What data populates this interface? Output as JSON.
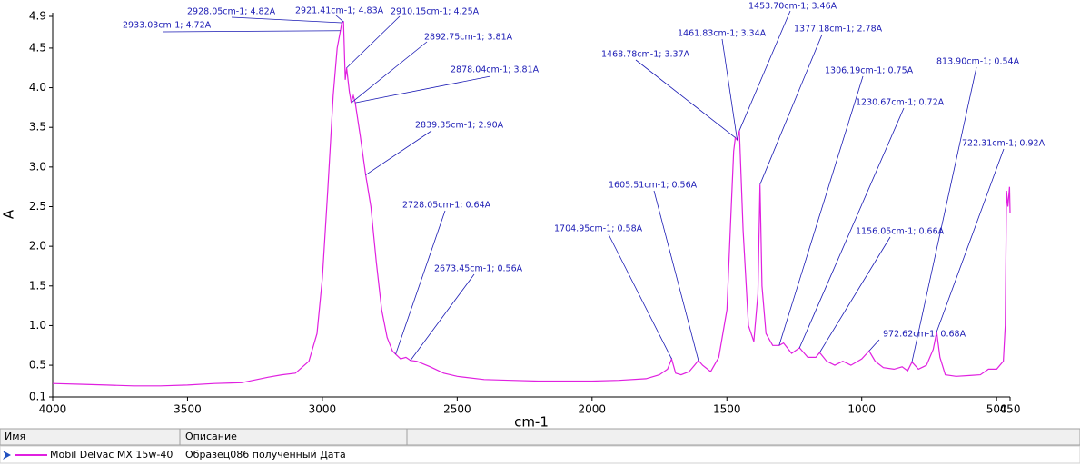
{
  "chart_data": {
    "type": "line",
    "x_label": "cm-1",
    "y_label": "A",
    "xlim": [
      4000,
      450
    ],
    "xticks": [
      4000,
      3500,
      3000,
      2500,
      2000,
      1500,
      1000,
      500,
      450
    ],
    "ylim": [
      0.1,
      4.9
    ],
    "yticks": [
      0.1,
      0.5,
      {
        "value": 1,
        "label": "1.0"
      },
      1.5,
      {
        "value": 2,
        "label": "2.0"
      },
      2.5,
      {
        "value": 3,
        "label": "3.0"
      },
      3.5,
      {
        "value": 4,
        "label": "4.0"
      },
      4.5,
      4.9
    ],
    "x": [
      4000,
      3900,
      3800,
      3700,
      3600,
      3500,
      3400,
      3300,
      3200,
      3150,
      3100,
      3050,
      3020,
      3000,
      2980,
      2960,
      2945,
      2933.03,
      2928.05,
      2921.41,
      2915,
      2910.15,
      2900,
      2892.75,
      2885,
      2878.04,
      2860,
      2839.35,
      2820,
      2800,
      2780,
      2760,
      2740,
      2728.05,
      2710,
      2690,
      2673.45,
      2650,
      2600,
      2550,
      2500,
      2400,
      2300,
      2200,
      2100,
      2000,
      1900,
      1800,
      1750,
      1720,
      1704.95,
      1690,
      1670,
      1640,
      1620,
      1605.51,
      1590,
      1560,
      1530,
      1500,
      1485,
      1475,
      1468.78,
      1461.83,
      1453.7,
      1440,
      1420,
      1400,
      1385,
      1377.18,
      1370,
      1355,
      1330,
      1306.19,
      1290,
      1260,
      1230.67,
      1200,
      1170,
      1156.05,
      1130,
      1100,
      1070,
      1040,
      1000,
      972.62,
      950,
      920,
      880,
      850,
      830,
      813.9,
      790,
      760,
      735,
      722.31,
      710,
      690,
      650,
      600,
      560,
      530,
      500,
      475,
      468,
      463,
      458,
      452,
      450
    ],
    "series": [
      {
        "name": "Mobil Delvac MX 15w-40",
        "color": "#e020e0",
        "values": [
          0.27,
          0.26,
          0.25,
          0.24,
          0.24,
          0.25,
          0.27,
          0.28,
          0.35,
          0.38,
          0.4,
          0.55,
          0.9,
          1.6,
          2.7,
          3.9,
          4.5,
          4.72,
          4.82,
          4.83,
          4.1,
          4.25,
          3.95,
          3.81,
          3.9,
          3.81,
          3.4,
          2.9,
          2.5,
          1.8,
          1.2,
          0.85,
          0.68,
          0.64,
          0.58,
          0.6,
          0.56,
          0.55,
          0.48,
          0.4,
          0.36,
          0.32,
          0.31,
          0.3,
          0.3,
          0.3,
          0.31,
          0.33,
          0.38,
          0.45,
          0.58,
          0.4,
          0.38,
          0.42,
          0.5,
          0.56,
          0.5,
          0.42,
          0.6,
          1.2,
          2.4,
          3.2,
          3.37,
          3.34,
          3.46,
          2.2,
          1.0,
          0.8,
          1.4,
          2.78,
          1.5,
          0.9,
          0.75,
          0.75,
          0.78,
          0.65,
          0.72,
          0.6,
          0.6,
          0.66,
          0.55,
          0.5,
          0.55,
          0.5,
          0.58,
          0.68,
          0.55,
          0.47,
          0.45,
          0.48,
          0.43,
          0.54,
          0.45,
          0.5,
          0.7,
          0.92,
          0.6,
          0.38,
          0.36,
          0.37,
          0.38,
          0.45,
          0.45,
          0.55,
          1.0,
          2.7,
          2.5,
          2.75,
          2.42
        ]
      }
    ],
    "annotation_color": "#1a1ab4",
    "annotations": [
      {
        "text": "2933.03cm-1; 4.72A",
        "x": 2933.03,
        "y": 4.72
      },
      {
        "text": "2928.05cm-1; 4.82A",
        "x": 2928.05,
        "y": 4.82
      },
      {
        "text": "2921.41cm-1; 4.83A",
        "x": 2921.41,
        "y": 4.83
      },
      {
        "text": "2910.15cm-1; 4.25A",
        "x": 2910.15,
        "y": 4.25
      },
      {
        "text": "2892.75cm-1; 3.81A",
        "x": 2892.75,
        "y": 3.81
      },
      {
        "text": "2878.04cm-1; 3.81A",
        "x": 2878.04,
        "y": 3.81
      },
      {
        "text": "2839.35cm-1; 2.90A",
        "x": 2839.35,
        "y": 2.9
      },
      {
        "text": "2728.05cm-1; 0.64A",
        "x": 2728.05,
        "y": 0.64
      },
      {
        "text": "2673.45cm-1; 0.56A",
        "x": 2673.45,
        "y": 0.56
      },
      {
        "text": "1704.95cm-1; 0.58A",
        "x": 1704.95,
        "y": 0.58
      },
      {
        "text": "1605.51cm-1; 0.56A",
        "x": 1605.51,
        "y": 0.56
      },
      {
        "text": "1468.78cm-1; 3.37A",
        "x": 1468.78,
        "y": 3.37
      },
      {
        "text": "1461.83cm-1; 3.34A",
        "x": 1461.83,
        "y": 3.34
      },
      {
        "text": "1453.70cm-1; 3.46A",
        "x": 1453.7,
        "y": 3.46
      },
      {
        "text": "1377.18cm-1; 2.78A",
        "x": 1377.18,
        "y": 2.78
      },
      {
        "text": "1306.19cm-1; 0.75A",
        "x": 1306.19,
        "y": 0.75
      },
      {
        "text": "1230.67cm-1; 0.72A",
        "x": 1230.67,
        "y": 0.72
      },
      {
        "text": "813.90cm-1; 0.54A",
        "x": 813.9,
        "y": 0.54
      },
      {
        "text": "722.31cm-1; 0.92A",
        "x": 722.31,
        "y": 0.92
      },
      {
        "text": "1156.05cm-1; 0.66A",
        "x": 1156.05,
        "y": 0.66
      },
      {
        "text": "972.62cm-1; 0.68A",
        "x": 972.62,
        "y": 0.68
      }
    ]
  },
  "table": {
    "headers": [
      "Имя",
      "Описание"
    ],
    "description": "Образец086 полученный  Дата"
  }
}
